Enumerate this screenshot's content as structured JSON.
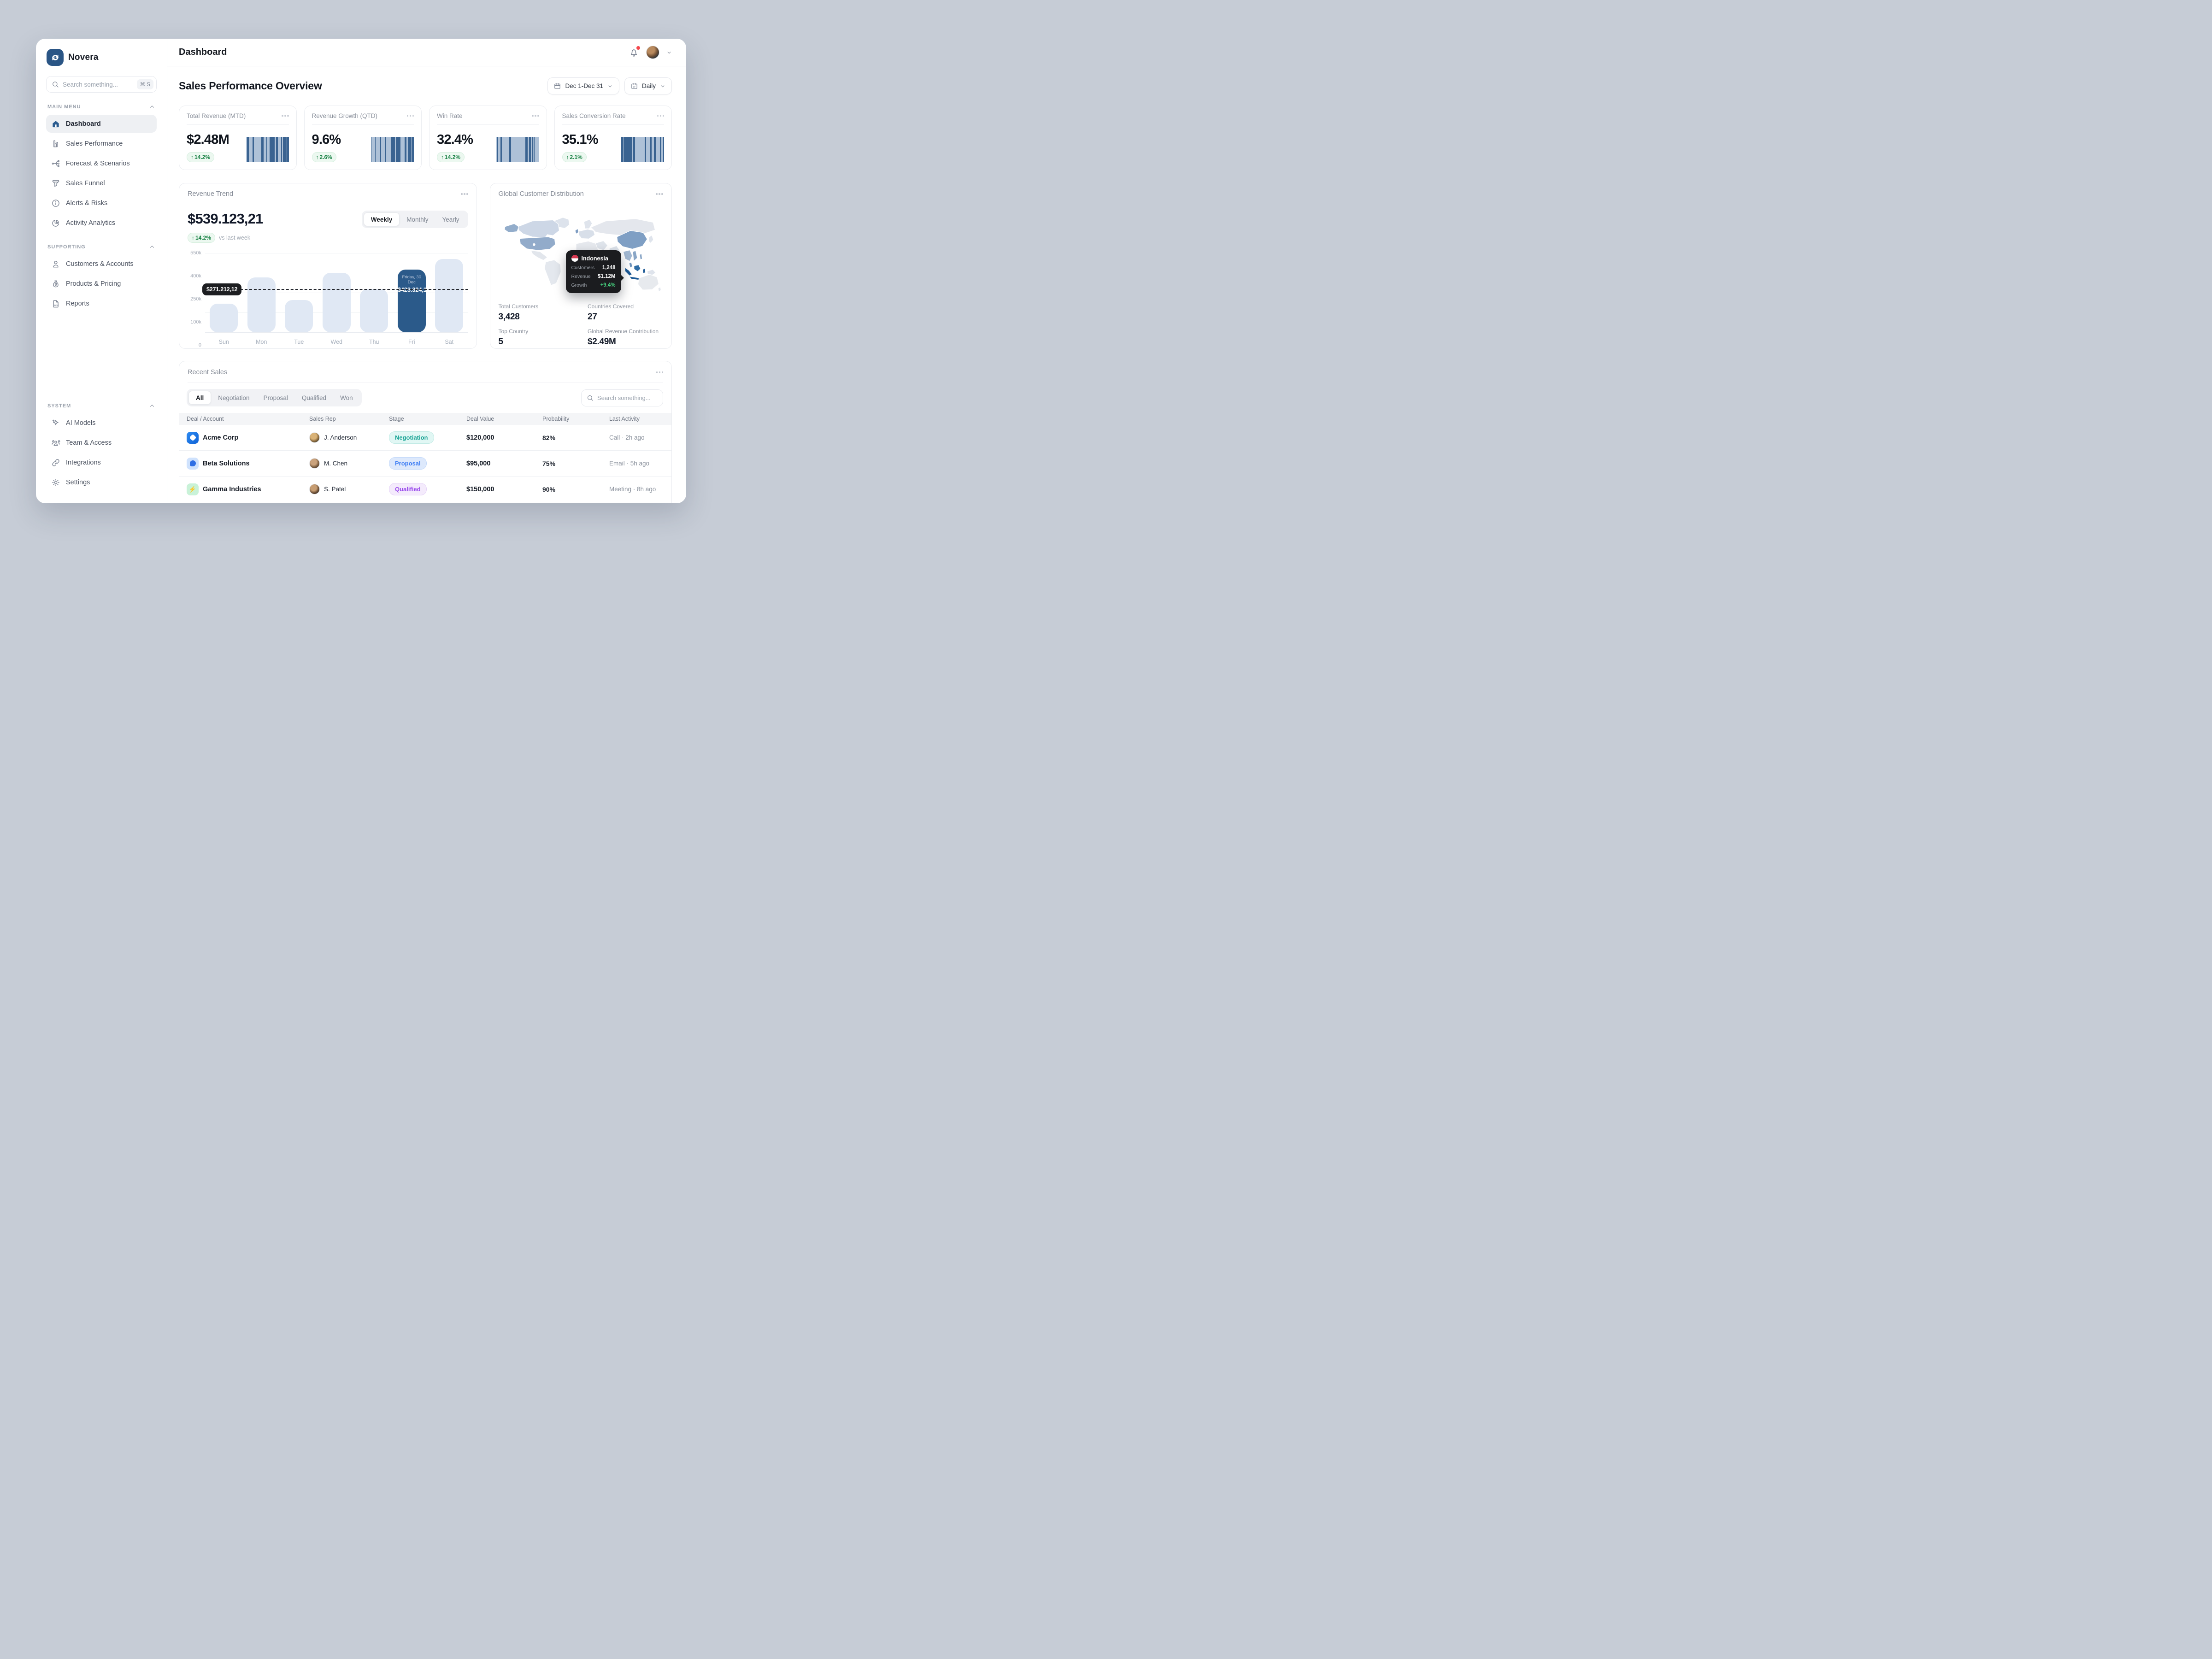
{
  "app": {
    "name": "Novera"
  },
  "icons": {
    "up_arrow": "↑",
    "shortcut": "⌘ S",
    "daily_day": "07",
    "gamma_bolt": "⚡"
  },
  "sidebar": {
    "search": {
      "placeholder": "Search something..."
    },
    "sections": [
      {
        "label": "MAIN MENU",
        "items": [
          {
            "label": "Dashboard"
          },
          {
            "label": "Sales Performance"
          },
          {
            "label": "Forecast & Scenarios"
          },
          {
            "label": "Sales Funnel"
          },
          {
            "label": "Alerts & Risks"
          },
          {
            "label": "Activity Analytics"
          }
        ]
      },
      {
        "label": "SUPPORTING",
        "items": [
          {
            "label": "Customers & Accounts"
          },
          {
            "label": "Products & Pricing"
          },
          {
            "label": "Reports"
          }
        ]
      },
      {
        "label": "SYSTEM",
        "items": [
          {
            "label": "AI Models"
          },
          {
            "label": "Team & Access"
          },
          {
            "label": "Integrations"
          },
          {
            "label": "Settings"
          }
        ]
      }
    ]
  },
  "header": {
    "title": "Dashboard"
  },
  "overview": {
    "title": "Sales Performance Overview",
    "date_range": "Dec 1-Dec 31",
    "granularity": "Daily",
    "kpis": [
      {
        "title": "Total Revenue (MTD)",
        "value": "$2.48M",
        "delta": "14.2%"
      },
      {
        "title": "Revenue Growth (QTD)",
        "value": "9.6%",
        "delta": "2.6%"
      },
      {
        "title": "Win Rate",
        "value": "32.4%",
        "delta": "14.2%"
      },
      {
        "title": "Sales Conversion Rate",
        "value": "35.1%",
        "delta": "2.1%"
      }
    ]
  },
  "revenue_trend": {
    "title": "Revenue Trend",
    "value": "$539.123,21",
    "delta": "14.2%",
    "delta_caption": "vs last week",
    "tabs": [
      "Weekly",
      "Monthly",
      "Yearly"
    ],
    "active_tab": "Weekly",
    "baseline_label": "$271.212,12",
    "highlight_tooltip": {
      "date": "Friday, 30 Dec",
      "value": "$423.324,12"
    },
    "chart": {
      "type": "bar",
      "categories": [
        "Sun",
        "Mon",
        "Tue",
        "Wed",
        "Thu",
        "Fri",
        "Sat"
      ],
      "values": [
        165000,
        365000,
        195000,
        400000,
        278000,
        423324,
        505000
      ],
      "highlight_index": 5,
      "baseline_value": 271212,
      "yticks": [
        "550k",
        "400k",
        "250k",
        "100k",
        "0"
      ],
      "ytick_values": [
        550000,
        400000,
        250000,
        100000,
        0
      ],
      "bar_color": "#e0e8f4",
      "highlight_color": "#2b5a8a"
    }
  },
  "global_distribution": {
    "title": "Global Customer Distribution",
    "tooltip": {
      "country": "Indonesia",
      "rows": [
        {
          "label": "Customers",
          "value": "1,248"
        },
        {
          "label": "Revenue",
          "value": "$1.12M"
        },
        {
          "label": "Growth",
          "value": "+9.4%"
        }
      ]
    },
    "stats": [
      {
        "label": "Total Customers",
        "value": "3,428"
      },
      {
        "label": "Countries Covered",
        "value": "27"
      },
      {
        "label": "Top Country",
        "value": "5"
      },
      {
        "label": "Global Revenue Contribution",
        "value": "$2.49M"
      }
    ]
  },
  "recent_sales": {
    "title": "Recent Sales",
    "filters": [
      "All",
      "Negotiation",
      "Proposal",
      "Qualified",
      "Won"
    ],
    "active_filter": "All",
    "search_placeholder": "Search something...",
    "columns": [
      "Deal / Account",
      "Sales Rep",
      "Stage",
      "Deal Value",
      "Probability",
      "Last Activity"
    ],
    "rows": [
      {
        "account": "Acme Corp",
        "rep": "J. Anderson",
        "stage": "Negotiation",
        "value": "$120,000",
        "probability": "82%",
        "activity": "Call · 2h ago"
      },
      {
        "account": "Beta Solutions",
        "rep": "M. Chen",
        "stage": "Proposal",
        "value": "$95,000",
        "probability": "75%",
        "activity": "Email · 5h ago"
      },
      {
        "account": "Gamma Industries",
        "rep": "S. Patel",
        "stage": "Qualified",
        "value": "$150,000",
        "probability": "90%",
        "activity": "Meeting · 8h ago"
      }
    ]
  }
}
